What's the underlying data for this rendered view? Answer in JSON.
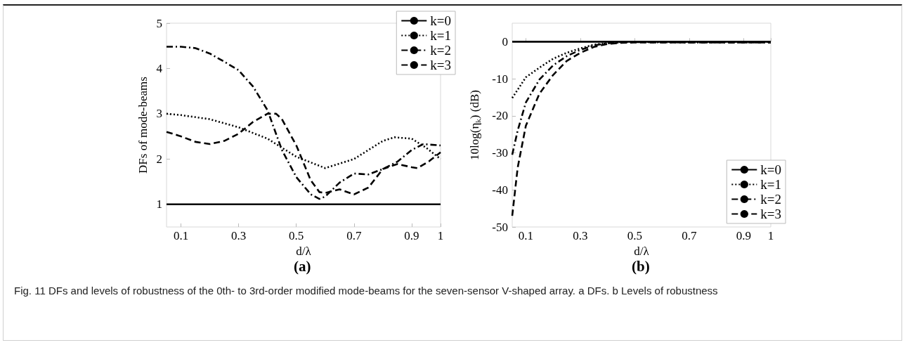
{
  "chart_data": [
    {
      "type": "line",
      "xlabel": "d/λ",
      "ylabel": "DFs of mode-beams",
      "xlim": [
        0.05,
        1
      ],
      "ylim": [
        0.5,
        5
      ],
      "xticks": [
        0.1,
        0.3,
        0.5,
        0.7,
        0.9,
        1
      ],
      "yticks": [
        1,
        2,
        3,
        4,
        5
      ],
      "grid": false,
      "legend": "top right",
      "marker": "none",
      "annotations": [
        "(a)",
        "Fig. 11 DFs and levels of robustness of the 0th- to 3rd-order modified mode-beams for the seven-sensor V-shaped array. a DFs. b Levels of robustness"
      ],
      "series": [
        {
          "name": "k=0",
          "color": "#000000",
          "line_style": "solid",
          "x": [
            0.05,
            1
          ],
          "values": [
            1,
            1
          ]
        },
        {
          "name": "k=1",
          "color": "#000000",
          "line_style": "dotted",
          "x": [
            0.05,
            0.1,
            0.2,
            0.3,
            0.4,
            0.5,
            0.6,
            0.7,
            0.8,
            0.84,
            0.9,
            0.95,
            1
          ],
          "values": [
            3.0,
            2.97,
            2.88,
            2.7,
            2.45,
            2.05,
            1.8,
            2.0,
            2.4,
            2.48,
            2.45,
            2.25,
            2.0
          ]
        },
        {
          "name": "k=2",
          "color": "#000000",
          "line_style": "dashdot",
          "x": [
            0.05,
            0.1,
            0.15,
            0.2,
            0.25,
            0.3,
            0.35,
            0.4,
            0.45,
            0.5,
            0.55,
            0.58,
            0.6,
            0.65,
            0.7,
            0.75,
            0.8,
            0.85,
            0.9,
            0.94,
            1
          ],
          "values": [
            4.48,
            4.48,
            4.45,
            4.33,
            4.15,
            3.96,
            3.6,
            3.08,
            2.2,
            1.6,
            1.22,
            1.12,
            1.17,
            1.48,
            1.68,
            1.66,
            1.78,
            1.94,
            2.2,
            2.33,
            2.3
          ]
        },
        {
          "name": "k=3",
          "color": "#000000",
          "line_style": "dashed",
          "x": [
            0.05,
            0.1,
            0.15,
            0.2,
            0.25,
            0.3,
            0.35,
            0.4,
            0.43,
            0.45,
            0.5,
            0.55,
            0.58,
            0.6,
            0.65,
            0.7,
            0.75,
            0.8,
            0.85,
            0.9,
            0.92,
            0.96,
            1
          ],
          "values": [
            2.6,
            2.5,
            2.38,
            2.33,
            2.4,
            2.56,
            2.82,
            3.0,
            3.0,
            2.88,
            2.3,
            1.53,
            1.27,
            1.25,
            1.33,
            1.22,
            1.37,
            1.78,
            1.89,
            1.82,
            1.8,
            1.95,
            2.15
          ]
        }
      ]
    },
    {
      "type": "line",
      "xlabel": "d/λ",
      "ylabel": "10log(η$_{k}$) (dB)",
      "xlim": [
        0.05,
        1
      ],
      "ylim": [
        -50,
        5
      ],
      "xticks": [
        0.1,
        0.3,
        0.5,
        0.7,
        0.9,
        1
      ],
      "yticks": [
        -50,
        -40,
        -30,
        -20,
        -10,
        0
      ],
      "grid": false,
      "legend": "bottom right",
      "marker": "none",
      "annotations": [
        "(b)"
      ],
      "series": [
        {
          "name": "k=0",
          "color": "#000000",
          "line_style": "solid",
          "x": [
            0.05,
            1
          ],
          "values": [
            0,
            0
          ]
        },
        {
          "name": "k=1",
          "color": "#000000",
          "line_style": "dotted",
          "x": [
            0.05,
            0.1,
            0.15,
            0.2,
            0.25,
            0.3,
            0.35,
            0.4,
            0.45,
            0.5,
            1
          ],
          "values": [
            -15.2,
            -9.6,
            -7,
            -4.6,
            -3,
            -1.8,
            -0.8,
            -0.3,
            -0.1,
            0,
            0
          ]
        },
        {
          "name": "k=2",
          "color": "#000000",
          "line_style": "dashdot",
          "x": [
            0.05,
            0.07,
            0.1,
            0.15,
            0.2,
            0.25,
            0.3,
            0.35,
            0.4,
            0.45,
            0.5,
            0.7,
            1
          ],
          "values": [
            -30.5,
            -24,
            -16.4,
            -10.2,
            -6.4,
            -3.9,
            -2.2,
            -1,
            -0.4,
            -0.2,
            -0.1,
            -0.2,
            -0.2
          ]
        },
        {
          "name": "k=3",
          "color": "#000000",
          "line_style": "dashed",
          "x": [
            0.05,
            0.07,
            0.1,
            0.15,
            0.2,
            0.25,
            0.3,
            0.35,
            0.4,
            0.45,
            0.5,
            0.7,
            1
          ],
          "values": [
            -47,
            -34,
            -22.7,
            -14,
            -9,
            -5.2,
            -3,
            -1.4,
            -0.6,
            -0.3,
            -0.2,
            -0.2,
            -0.2
          ]
        }
      ]
    }
  ]
}
